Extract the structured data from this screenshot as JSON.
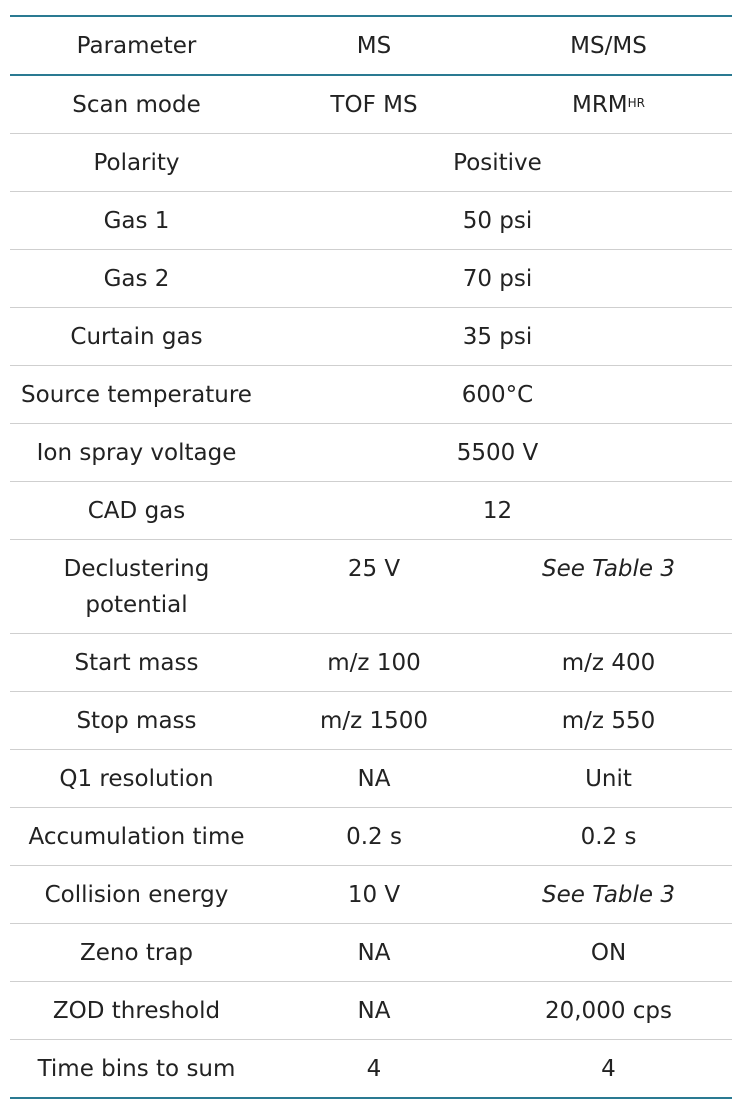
{
  "headers": [
    "Parameter",
    "MS",
    "MS/MS"
  ],
  "scan_mode": {
    "label": "Scan mode",
    "ms": "TOF MS",
    "msms_base": "MRM",
    "msms_sup": "HR"
  },
  "shared_rows": [
    {
      "label": "Polarity",
      "value": "Positive"
    },
    {
      "label": "Gas 1",
      "value": "50 psi"
    },
    {
      "label": "Gas 2",
      "value": "70 psi"
    },
    {
      "label": "Curtain gas",
      "value": "35 psi"
    },
    {
      "label": "Source temperature",
      "value": "600°C"
    },
    {
      "label": "Ion spray voltage",
      "value": "5500 V"
    },
    {
      "label": "CAD gas",
      "value": "12"
    }
  ],
  "declustering": {
    "label_line1": "Declustering",
    "label_line2": "potential",
    "ms": "25 V",
    "msms": "See Table 3"
  },
  "rows": [
    {
      "label": "Start mass",
      "ms": "m/z 100",
      "msms": "m/z 400"
    },
    {
      "label": "Stop mass",
      "ms": "m/z 1500",
      "msms": "m/z 550"
    },
    {
      "label": "Q1 resolution",
      "ms": "NA",
      "msms": "Unit"
    },
    {
      "label": "Accumulation time",
      "ms": "0.2 s",
      "msms": "0.2 s"
    },
    {
      "label": "Collision energy",
      "ms": "10 V",
      "msms": "See Table 3"
    },
    {
      "label": "Zeno trap",
      "ms": "NA",
      "msms": "ON"
    },
    {
      "label": "ZOD threshold",
      "ms": "NA",
      "msms": "20,000 cps"
    },
    {
      "label": "Time bins to sum",
      "ms": "4",
      "msms": "4"
    }
  ]
}
